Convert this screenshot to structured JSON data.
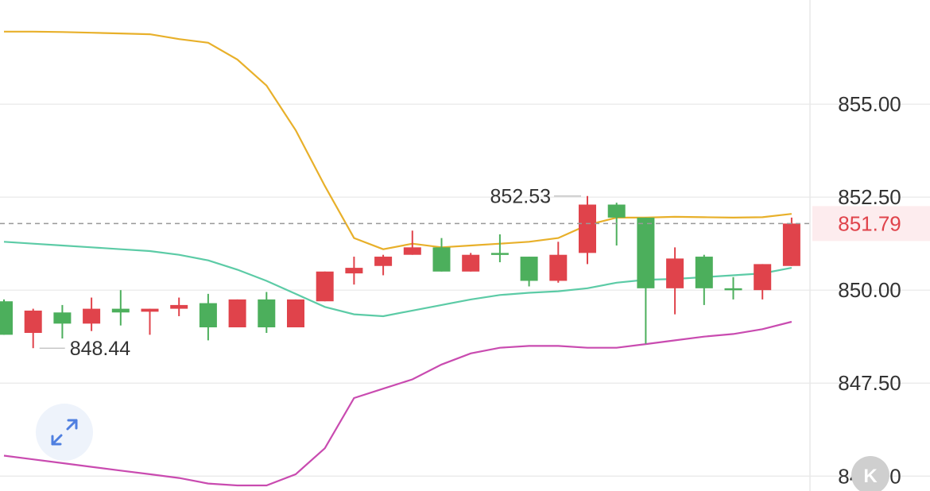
{
  "chart_data": {
    "type": "candlestick",
    "y_axis": {
      "ticks": [
        845.0,
        847.5,
        850.0,
        852.5,
        855.0
      ],
      "tick_labels": [
        "845.00",
        "847.50",
        "850.00",
        "852.50",
        "855.00"
      ],
      "ylim": [
        844.6,
        857.8
      ],
      "side": "right",
      "grid": true
    },
    "current_price": {
      "value": 851.79,
      "label": "851.79",
      "color": "#e0434b"
    },
    "annotations": [
      {
        "label": "852.53",
        "value": 852.53,
        "candle_index": 20
      },
      {
        "label": "848.44",
        "value": 848.44,
        "candle_index": 1
      }
    ],
    "colors": {
      "up": "#e0434b",
      "down": "#4caf5c",
      "upper_band": "#e8b02a",
      "middle_band": "#5ccba6",
      "lower_band": "#c94bb0",
      "grid": "#e8e8e8",
      "current_line": "#999999"
    },
    "candles": [
      {
        "o": 849.7,
        "c": 848.8,
        "h": 849.75,
        "l": 848.8
      },
      {
        "o": 848.85,
        "c": 849.45,
        "h": 849.5,
        "l": 848.44
      },
      {
        "o": 849.4,
        "c": 849.1,
        "h": 849.6,
        "l": 848.7
      },
      {
        "o": 849.1,
        "c": 849.5,
        "h": 849.8,
        "l": 848.9
      },
      {
        "o": 849.5,
        "c": 849.4,
        "h": 850.0,
        "l": 849.05
      },
      {
        "o": 849.42,
        "c": 849.5,
        "h": 849.5,
        "l": 848.8
      },
      {
        "o": 849.5,
        "c": 849.6,
        "h": 849.8,
        "l": 849.3
      },
      {
        "o": 849.65,
        "c": 849.0,
        "h": 849.9,
        "l": 848.65
      },
      {
        "o": 849.0,
        "c": 849.75,
        "h": 849.75,
        "l": 849.0
      },
      {
        "o": 849.75,
        "c": 849.0,
        "h": 849.95,
        "l": 848.85
      },
      {
        "o": 849.0,
        "c": 849.75,
        "h": 849.75,
        "l": 849.0
      },
      {
        "o": 849.7,
        "c": 850.5,
        "h": 850.5,
        "l": 849.7
      },
      {
        "o": 850.45,
        "c": 850.6,
        "h": 850.9,
        "l": 850.15
      },
      {
        "o": 850.65,
        "c": 850.9,
        "h": 850.95,
        "l": 850.4
      },
      {
        "o": 850.95,
        "c": 851.15,
        "h": 851.6,
        "l": 850.95
      },
      {
        "o": 851.15,
        "c": 850.5,
        "h": 851.4,
        "l": 850.5
      },
      {
        "o": 850.5,
        "c": 850.95,
        "h": 851.0,
        "l": 850.5
      },
      {
        "o": 851.0,
        "c": 850.95,
        "h": 851.5,
        "l": 850.75
      },
      {
        "o": 850.9,
        "c": 850.25,
        "h": 850.9,
        "l": 850.1
      },
      {
        "o": 850.25,
        "c": 850.95,
        "h": 851.3,
        "l": 850.2
      },
      {
        "o": 851.0,
        "c": 852.3,
        "h": 852.53,
        "l": 850.7
      },
      {
        "o": 852.3,
        "c": 851.95,
        "h": 852.35,
        "l": 851.2
      },
      {
        "o": 851.95,
        "c": 850.05,
        "h": 851.95,
        "l": 848.56
      },
      {
        "o": 850.05,
        "c": 850.85,
        "h": 851.15,
        "l": 849.35
      },
      {
        "o": 850.9,
        "c": 850.05,
        "h": 850.95,
        "l": 849.6
      },
      {
        "o": 850.05,
        "c": 850.0,
        "h": 850.35,
        "l": 849.75
      },
      {
        "o": 850.0,
        "c": 850.7,
        "h": 850.7,
        "l": 849.75
      },
      {
        "o": 850.65,
        "c": 851.79,
        "h": 851.95,
        "l": 850.65
      }
    ],
    "bands": {
      "upper": [
        856.95,
        856.95,
        856.94,
        856.92,
        856.9,
        856.88,
        856.75,
        856.65,
        856.2,
        855.5,
        854.3,
        852.8,
        851.4,
        851.1,
        851.25,
        851.15,
        851.2,
        851.25,
        851.3,
        851.4,
        851.75,
        851.95,
        851.95,
        851.97,
        851.96,
        851.95,
        851.96,
        852.05
      ],
      "middle": [
        851.3,
        851.25,
        851.2,
        851.15,
        851.1,
        851.05,
        850.95,
        850.8,
        850.55,
        850.25,
        849.9,
        849.55,
        849.35,
        849.3,
        849.45,
        849.6,
        849.75,
        849.87,
        849.93,
        849.97,
        850.05,
        850.2,
        850.28,
        850.3,
        850.35,
        850.4,
        850.45,
        850.6
      ],
      "lower": [
        845.55,
        845.45,
        845.35,
        845.25,
        845.15,
        845.05,
        844.95,
        844.8,
        844.75,
        844.75,
        845.05,
        845.75,
        847.1,
        847.35,
        847.6,
        848.0,
        848.3,
        848.45,
        848.5,
        848.5,
        848.45,
        848.45,
        848.55,
        848.65,
        848.75,
        848.82,
        848.95,
        849.15
      ]
    }
  }
}
